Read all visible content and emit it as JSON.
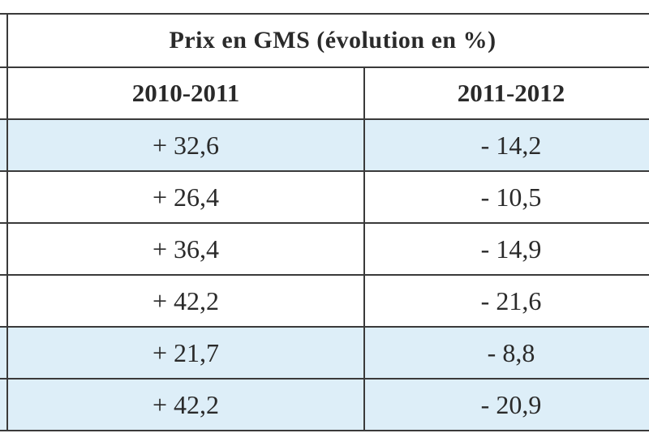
{
  "table": {
    "title": "Prix en GMS (évolution en %)",
    "columns": [
      "2010-2011",
      "2011-2012"
    ],
    "rows": [
      {
        "values": [
          "+ 32,6",
          "- 14,2"
        ],
        "shaded": true
      },
      {
        "values": [
          "+ 26,4",
          "- 10,5"
        ],
        "shaded": false
      },
      {
        "values": [
          "+ 36,4",
          "- 14,9"
        ],
        "shaded": false
      },
      {
        "values": [
          "+ 42,2",
          "- 21,6"
        ],
        "shaded": false
      },
      {
        "values": [
          "+ 21,7",
          "- 8,8"
        ],
        "shaded": true
      },
      {
        "values": [
          "+ 42,2",
          "- 20,9"
        ],
        "shaded": true
      }
    ]
  },
  "colors": {
    "shaded_row": "#ddeef8",
    "border": "#3a3a3a",
    "text": "#2a2a2a"
  },
  "chart_data": {
    "type": "table",
    "title": "Prix en GMS (évolution en %)",
    "columns": [
      "2010-2011",
      "2011-2012"
    ],
    "series": [
      {
        "name": "2010-2011",
        "values": [
          32.6,
          26.4,
          36.4,
          42.2,
          21.7,
          42.2
        ]
      },
      {
        "name": "2011-2012",
        "values": [
          -14.2,
          -10.5,
          -14.9,
          -21.6,
          -8.8,
          -20.9
        ]
      }
    ]
  }
}
